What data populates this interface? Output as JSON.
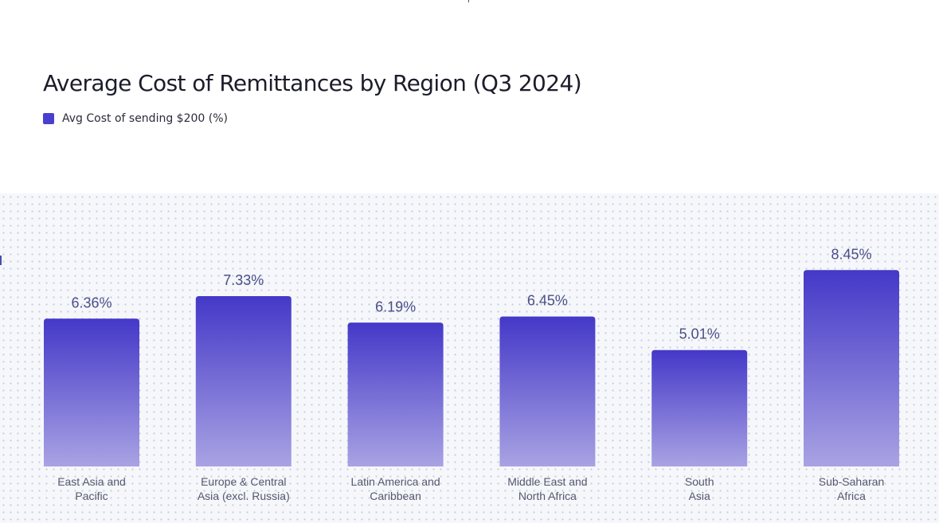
{
  "colors": {
    "bar_top": "#4438c8",
    "bar_bottom": "#a9a3e3",
    "legend_swatch": "#4a3fcd"
  },
  "chart_data": {
    "type": "bar",
    "title": "Average Cost of Remittances by Region (Q3 2024)",
    "legend": [
      "Avg Cost of sending $200 (%)"
    ],
    "categories": [
      [
        "East Asia and",
        "Pacific"
      ],
      [
        "Europe & Central",
        "Asia (excl. Russia)"
      ],
      [
        "Latin America and",
        "Caribbean"
      ],
      [
        "Middle East and",
        "North Africa"
      ],
      [
        "South",
        "Asia"
      ],
      [
        "Sub-Saharan",
        "Africa"
      ]
    ],
    "series": [
      {
        "name": "Avg Cost of sending $200 (%)",
        "values": [
          6.36,
          7.33,
          6.19,
          6.45,
          5.01,
          8.45
        ],
        "labels": [
          "6.36%",
          "7.33%",
          "6.19%",
          "6.45%",
          "5.01%",
          "8.45%"
        ]
      }
    ],
    "xlabel": "",
    "ylabel": "",
    "grid": false,
    "legend_position": "top-left"
  }
}
